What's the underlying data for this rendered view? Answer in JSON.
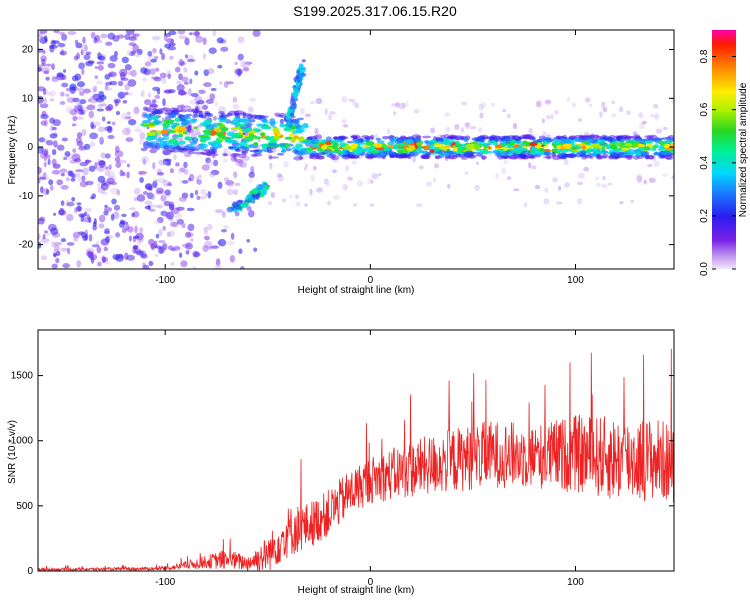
{
  "title": "S199.2025.317.06.15.R20",
  "chart_data": [
    {
      "type": "heatmap",
      "id": "spectrogram",
      "xlabel": "Height of straight line (km)",
      "ylabel": "Frequency (Hz)",
      "xlim": [
        -162,
        148
      ],
      "ylim": [
        -25,
        24
      ],
      "xticks": [
        -100,
        0,
        100
      ],
      "yticks": [
        -20,
        -10,
        0,
        10,
        20
      ],
      "colorbar": {
        "label": "Normalized spectral amplitude",
        "range": [
          0.0,
          0.9
        ],
        "ticks": [
          0.0,
          0.2,
          0.4,
          0.6,
          0.8
        ],
        "tick_labels": [
          "0.0",
          "0.2",
          "0.4",
          "0.6",
          "0.8"
        ]
      },
      "features": [
        {
          "name": "noise-region",
          "x_range": [
            -162,
            -95
          ],
          "y_range": [
            -25,
            24
          ],
          "level": 0.12
        },
        {
          "name": "main-band",
          "x_range": [
            -110,
            148
          ],
          "center_hz": 0,
          "level": 0.5
        },
        {
          "name": "upper-branch",
          "x": [
            -40,
            -33
          ],
          "y": [
            5,
            17
          ],
          "level": 0.3
        },
        {
          "name": "lower-branch",
          "x": [
            -68,
            -50
          ],
          "y": [
            -13,
            -8
          ],
          "level": 0.35
        }
      ]
    },
    {
      "type": "line",
      "id": "snr",
      "xlabel": "Height of straight line (km)",
      "ylabel": "SNR (10 * v/v)",
      "xlim": [
        -162,
        148
      ],
      "ylim": [
        0,
        1850
      ],
      "xticks": [
        -100,
        0,
        100
      ],
      "yticks": [
        0,
        500,
        1000,
        1500
      ],
      "color": "#ee2222",
      "envelope": {
        "x": [
          -162,
          -100,
          -80,
          -70,
          -60,
          -50,
          -40,
          -30,
          -20,
          -10,
          0,
          20,
          40,
          60,
          80,
          100,
          120,
          140,
          148
        ],
        "mean": [
          12,
          18,
          70,
          90,
          60,
          130,
          300,
          350,
          450,
          600,
          700,
          780,
          850,
          900,
          880,
          900,
          860,
          860,
          820
        ],
        "spread": [
          10,
          12,
          50,
          80,
          60,
          140,
          200,
          180,
          180,
          180,
          180,
          220,
          250,
          260,
          250,
          300,
          330,
          320,
          300
        ]
      }
    }
  ]
}
